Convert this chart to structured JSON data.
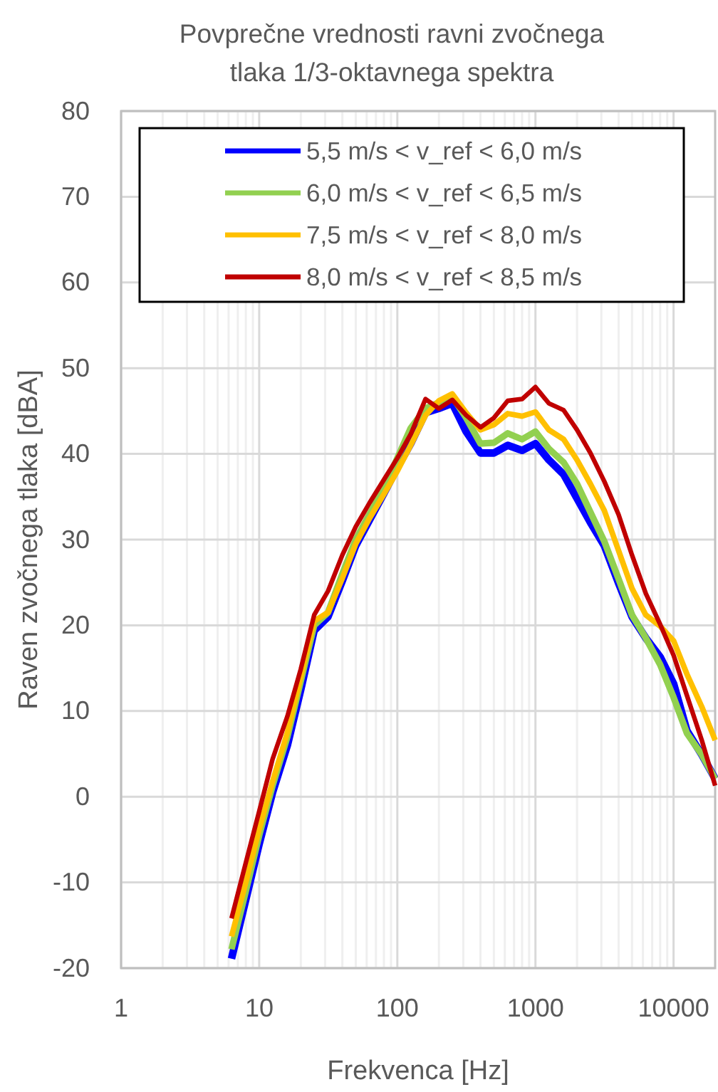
{
  "chart_data": {
    "type": "line",
    "title": "Povprečne vrednosti ravni zvočnega tlaka 1/3-oktavnega spektra",
    "xlabel": "Frekvenca [Hz]",
    "ylabel": "Raven zvočnega tlaka [dBA]",
    "x": [
      6.3,
      8,
      10,
      12.5,
      16,
      20,
      25,
      31.5,
      40,
      50,
      63,
      80,
      100,
      125,
      160,
      200,
      250,
      315,
      400,
      500,
      630,
      800,
      1000,
      1250,
      1600,
      2000,
      2500,
      3150,
      4000,
      5000,
      6300,
      8000,
      10000,
      12500,
      16000,
      20000
    ],
    "series": [
      {
        "name": "5,5 m/s < v_ref < 6,0 m/s",
        "color": "#0000ff",
        "values": [
          -18.9,
          -12,
          -5.5,
          0.5,
          6,
          12.5,
          19.4,
          21,
          25.2,
          29.3,
          32.3,
          35.4,
          38.4,
          41.2,
          44.8,
          45.3,
          45.9,
          42.6,
          40.1,
          40.1,
          41.0,
          40.4,
          41.2,
          39.3,
          37.6,
          34.8,
          32.0,
          29.3,
          24.9,
          21.0,
          18.5,
          16.3,
          13.2,
          7.7,
          4.9,
          2.1
        ]
      },
      {
        "name": "6,0 m/s < v_ref < 6,5 m/s",
        "color": "#92d050",
        "values": [
          -17.8,
          -11,
          -4.5,
          1.3,
          7,
          13.5,
          20,
          21.5,
          26,
          30,
          33,
          36,
          39.5,
          43,
          45.3,
          46,
          46.7,
          44.2,
          41.2,
          41.3,
          42.4,
          41.7,
          42.6,
          40.6,
          39.0,
          36.5,
          33.2,
          29.8,
          25.4,
          21.2,
          18.5,
          15.4,
          11.6,
          7.4,
          4.9,
          2.1
        ]
      },
      {
        "name": "7,5 m/s < v_ref < 8,0 m/s",
        "color": "#ffc000",
        "values": [
          -16.3,
          -10,
          -3.8,
          1.8,
          7.5,
          14,
          20.5,
          21.5,
          25.5,
          29.5,
          32.5,
          35.3,
          38,
          41,
          44.5,
          46.2,
          47.0,
          44.8,
          42.8,
          43.4,
          44.7,
          44.4,
          44.9,
          42.8,
          41.7,
          39.3,
          36.5,
          33.4,
          28.7,
          24.3,
          21.2,
          19.9,
          18.2,
          14.3,
          10.5,
          6.6
        ]
      },
      {
        "name": "8,0 m/s < v_ref < 8,5 m/s",
        "color": "#c00000",
        "values": [
          -14.2,
          -7.7,
          -1.7,
          4.4,
          9.4,
          14.9,
          21.2,
          24.0,
          28.2,
          31.5,
          34.3,
          37.0,
          39.5,
          42.3,
          46.4,
          45.3,
          46.3,
          44.5,
          43.1,
          44.2,
          46.2,
          46.4,
          47.8,
          45.9,
          45.1,
          42.8,
          40.1,
          36.8,
          32.9,
          28.2,
          23.7,
          20.1,
          16.5,
          11.8,
          6.6,
          1.3
        ]
      }
    ],
    "log": "x",
    "xlim": [
      1,
      20000
    ],
    "xticks": [
      1,
      10,
      100,
      1000,
      10000
    ],
    "ylim": [
      -20,
      80
    ],
    "yticks": [
      -20,
      -10,
      0,
      10,
      20,
      30,
      40,
      50,
      60,
      70,
      80
    ],
    "grid": true,
    "legend": "top",
    "line_style": "solid",
    "marker": "none"
  }
}
